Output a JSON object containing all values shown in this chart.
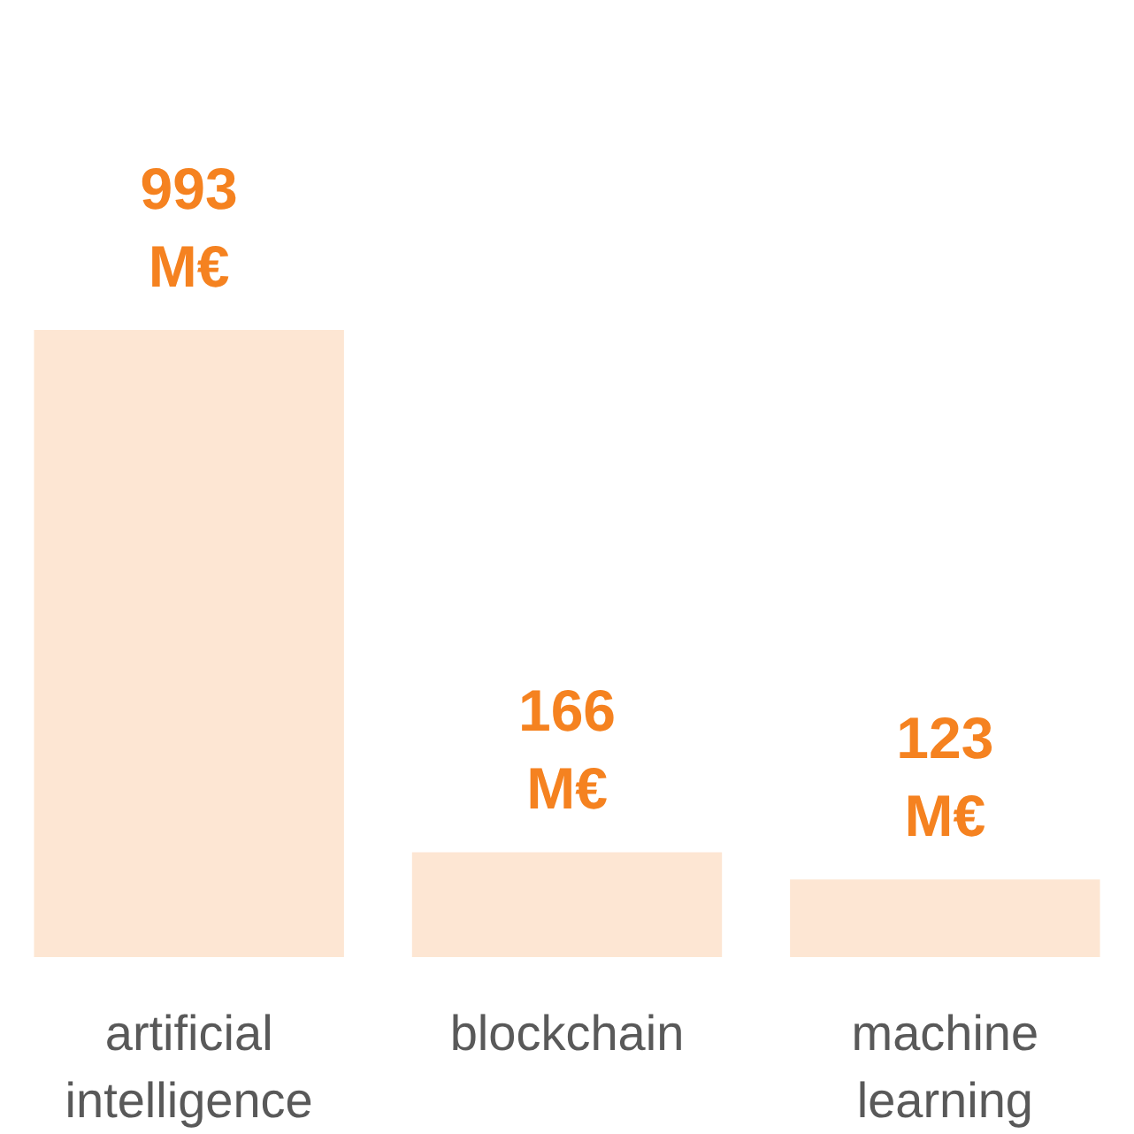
{
  "chart_data": {
    "type": "bar",
    "categories": [
      "artificial\nintelligence",
      "blockchain",
      "machine\nlearning"
    ],
    "values": [
      993,
      166,
      123
    ],
    "value_labels": [
      "993\nM€",
      "166\nM€",
      "123\nM€"
    ],
    "color": "#fde6d3"
  }
}
